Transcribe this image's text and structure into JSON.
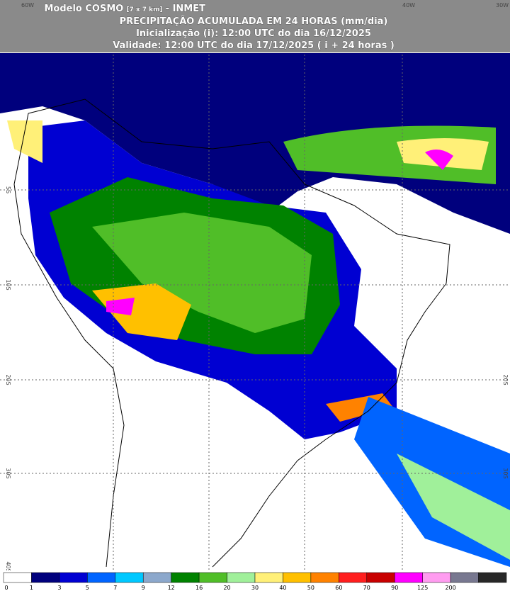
{
  "header": {
    "line1_a": "Modelo COSMO",
    "line1_b": "[7 x 7 km]",
    "line1_c": "- INMET",
    "line2": "PRECIPITAÇÃO ACUMULADA EM 24 HORAS (mm/dia)",
    "line3": "Inicialização (i): 12:00 UTC do dia 16/12/2025",
    "line4": "Validade: 12:00 UTC do dia 17/12/2025 ( i + 24 horas )"
  },
  "axes": {
    "top": [
      "60W",
      "40W",
      "30W"
    ],
    "left": [
      "5S",
      "10S",
      "20S",
      "30S",
      "40S"
    ],
    "right": [
      "20S",
      "30S"
    ]
  },
  "legend": {
    "labels": [
      "0",
      "1",
      "3",
      "5",
      "7",
      "9",
      "12",
      "16",
      "20",
      "30",
      "40",
      "50",
      "60",
      "70",
      "90",
      "125",
      "200"
    ],
    "colors": [
      "#ffffff",
      "#00007d",
      "#0000d2",
      "#0064ff",
      "#00c8ff",
      "#8ca8cc",
      "#008200",
      "#50be28",
      "#a0f09a",
      "#fff078",
      "#ffc000",
      "#ff8200",
      "#ff1e1e",
      "#c80000",
      "#ff00ff",
      "#ff9cf0",
      "#787890",
      "#282828"
    ]
  }
}
